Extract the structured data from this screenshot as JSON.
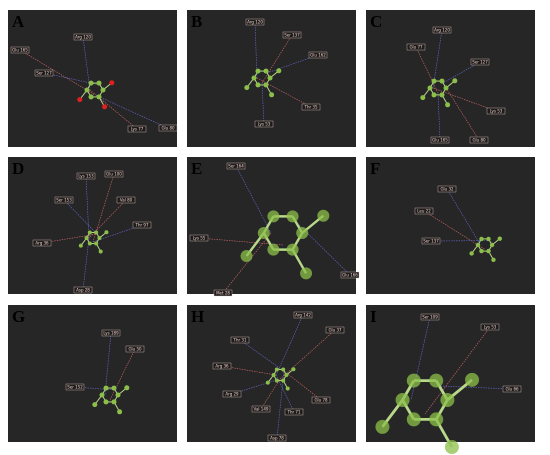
{
  "panels": [
    {
      "letter": "A",
      "labels": [
        "Arg 120",
        "Glu 165",
        "Ser 127",
        "Lys 77",
        "Glu 80"
      ]
    },
    {
      "letter": "B",
      "labels": [
        "Arg 120",
        "Ser 137",
        "Glu 162",
        "Thr 35",
        "Lys 53"
      ]
    },
    {
      "letter": "C",
      "labels": [
        "Arg 120",
        "Glu 77",
        "Ser 127",
        "Lys 53",
        "Glu 165",
        "Glu 80"
      ]
    },
    {
      "letter": "D",
      "labels": [
        "Lys 153",
        "Glu 100",
        "Ser 153",
        "Val 80",
        "Thr 97",
        "Arg 36",
        "Asp 28"
      ]
    },
    {
      "letter": "E",
      "labels": [
        "Ser 164",
        "Lys 55",
        "Glu 166",
        "Met 28"
      ]
    },
    {
      "letter": "F",
      "labels": [
        "Glu 32",
        "Leu 22",
        "Ser 137"
      ]
    },
    {
      "letter": "G",
      "labels": [
        "Lys 189",
        "Glu 50",
        "Ser 152"
      ]
    },
    {
      "letter": "H",
      "labels": [
        "Arg 142",
        "Glu 37",
        "Thr 31",
        "Arg 36",
        "Arg 29",
        "Glu 78",
        "Thr 71",
        "Val 149",
        "Asp 78"
      ]
    },
    {
      "letter": "I",
      "labels": [
        "Ser 109",
        "Lys 53",
        "Glu 66"
      ]
    }
  ]
}
